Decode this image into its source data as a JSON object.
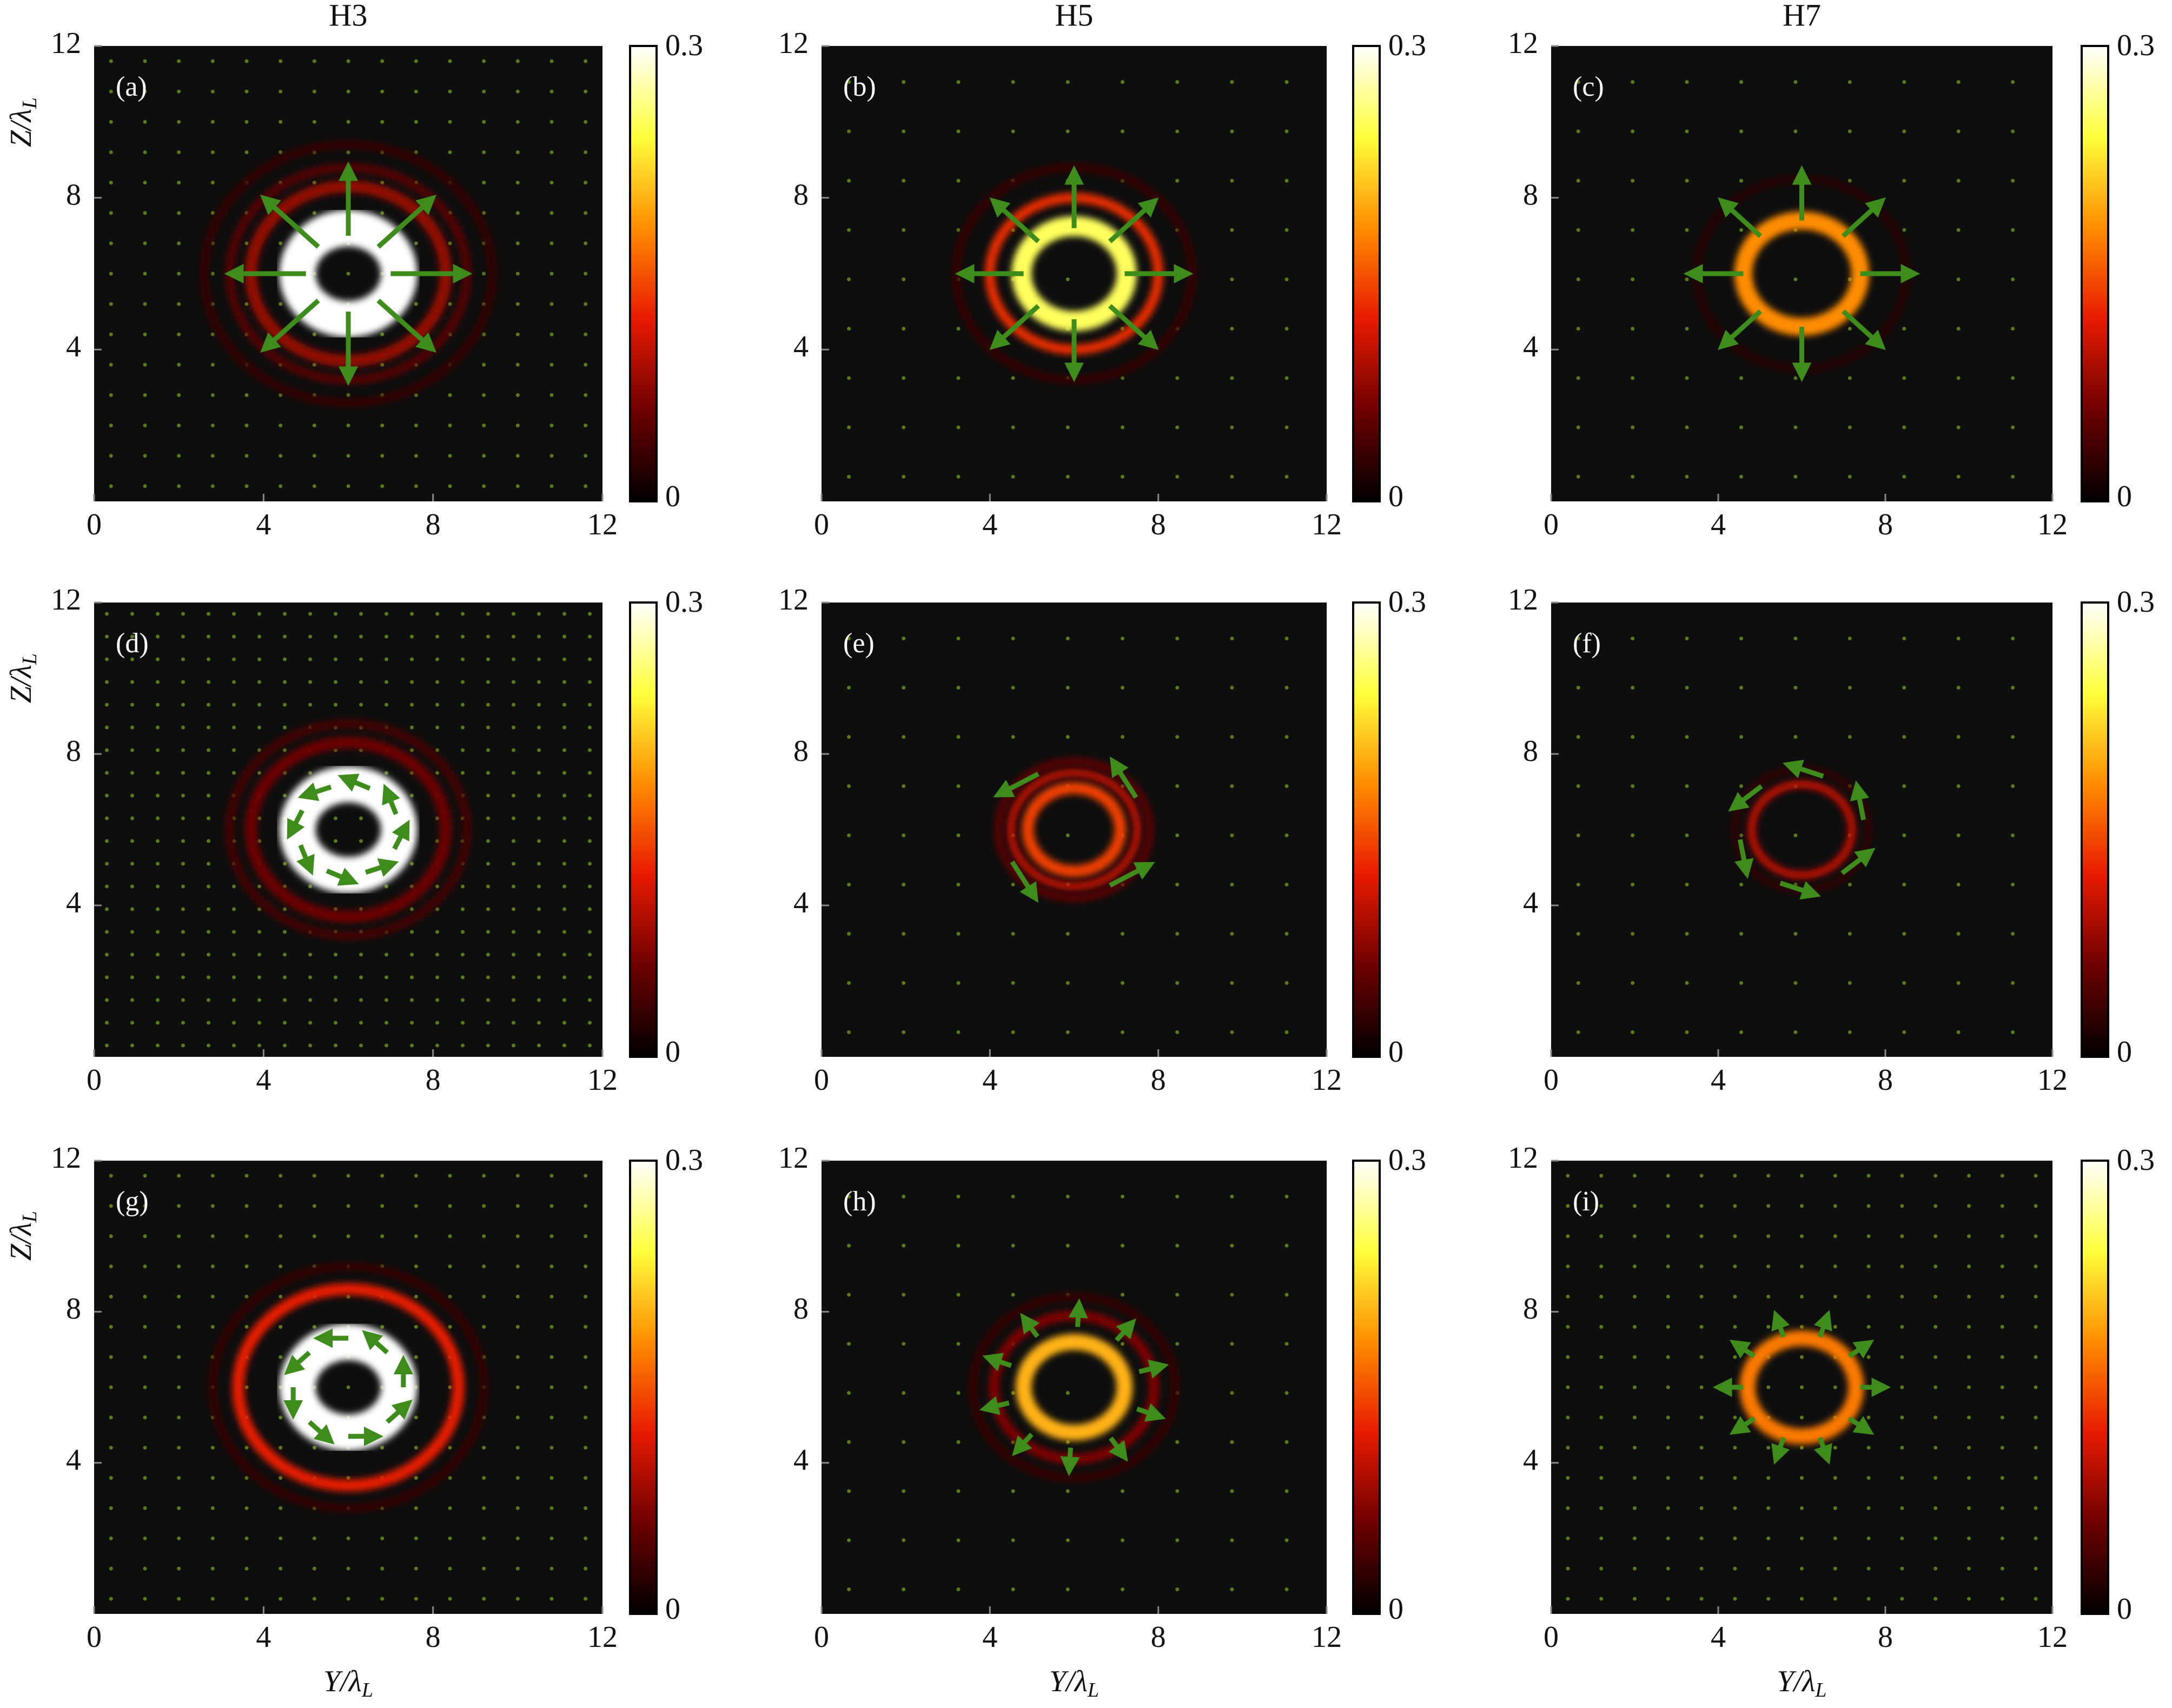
{
  "chart_data": [
    {
      "type": "heatmap",
      "column_title": "H3",
      "label": "(a)",
      "ylabel": {
        "text": "Z/λ",
        "subscript": "L"
      },
      "xlim": [
        0,
        12
      ],
      "ylim": [
        0,
        12
      ],
      "xticks": [
        0,
        4,
        8,
        12
      ],
      "yticks": [
        4,
        8,
        12
      ],
      "clim": [
        0,
        0.3
      ],
      "cticks": [
        0,
        0.3
      ],
      "colormap": [
        "#000000",
        "#6e0000",
        "#e81a00",
        "#ff8c00",
        "#ffff3c",
        "#ffffff"
      ],
      "background": "#0e0e0e",
      "center": [
        6,
        6
      ],
      "dot_spacing": 0.8,
      "dot_color": "#5a7a1a",
      "arrow_color": "#3d8c1c",
      "rings": [
        {
          "radius": 1.2,
          "width": 0.9,
          "value": 0.3
        },
        {
          "radius": 2.3,
          "width": 0.3,
          "value": 0.08
        },
        {
          "radius": 2.8,
          "width": 0.2,
          "value": 0.05
        },
        {
          "radius": 3.4,
          "width": 0.2,
          "value": 0.03
        }
      ],
      "arrows": {
        "count": 8,
        "radius": 1,
        "length": 1.7,
        "start_angle": 0,
        "direction": "radial"
      }
    },
    {
      "type": "heatmap",
      "column_title": "H5",
      "label": "(b)",
      "xlim": [
        0,
        12
      ],
      "ylim": [
        0,
        12
      ],
      "xticks": [
        0,
        4,
        8,
        12
      ],
      "yticks": [
        4,
        8,
        12
      ],
      "clim": [
        0,
        0.3
      ],
      "cticks": [
        0,
        0.3
      ],
      "colormap": [
        "#000000",
        "#6e0000",
        "#e81a00",
        "#ff8c00",
        "#ffff3c",
        "#ffffff"
      ],
      "background": "#0e0e0e",
      "center": [
        6,
        6
      ],
      "dot_spacing": 1.3,
      "dot_color": "#5a7a1a",
      "arrow_color": "#3d8c1c",
      "rings": [
        {
          "radius": 1.25,
          "width": 0.5,
          "value": 0.25
        },
        {
          "radius": 2.0,
          "width": 0.25,
          "value": 0.13
        },
        {
          "radius": 2.8,
          "width": 0.2,
          "value": 0.03
        }
      ],
      "arrows": {
        "count": 8,
        "radius": 1.2,
        "length": 1.4,
        "start_angle": 0,
        "direction": "radial"
      }
    },
    {
      "type": "heatmap",
      "column_title": "H7",
      "label": "(c)",
      "xlim": [
        0,
        12
      ],
      "ylim": [
        0,
        12
      ],
      "xticks": [
        0,
        4,
        8,
        12
      ],
      "yticks": [
        4,
        8,
        12
      ],
      "clim": [
        0,
        0.3
      ],
      "cticks": [
        0,
        0.3
      ],
      "colormap": [
        "#000000",
        "#6e0000",
        "#e81a00",
        "#ff8c00",
        "#ffff3c",
        "#ffffff"
      ],
      "background": "#0e0e0e",
      "center": [
        6,
        6
      ],
      "dot_spacing": 1.3,
      "dot_color": "#5a7a1a",
      "arrow_color": "#3d8c1c",
      "rings": [
        {
          "radius": 1.4,
          "width": 0.45,
          "value": 0.18
        },
        {
          "radius": 2.5,
          "width": 0.2,
          "value": 0.02
        }
      ],
      "arrows": {
        "count": 8,
        "radius": 1.4,
        "length": 1.2,
        "start_angle": 0,
        "direction": "radial"
      }
    },
    {
      "type": "heatmap",
      "label": "(d)",
      "ylabel": {
        "text": "Z/λ",
        "subscript": "L"
      },
      "xlim": [
        0,
        12
      ],
      "ylim": [
        0,
        12
      ],
      "xticks": [
        0,
        4,
        8,
        12
      ],
      "yticks": [
        4,
        8,
        12
      ],
      "clim": [
        0,
        0.3
      ],
      "cticks": [
        0,
        0.3
      ],
      "colormap": [
        "#000000",
        "#6e0000",
        "#e81a00",
        "#ff8c00",
        "#ffff3c",
        "#ffffff"
      ],
      "background": "#0e0e0e",
      "center": [
        6,
        6
      ],
      "dot_spacing": 0.6,
      "dot_color": "#5a7a1a",
      "arrow_color": "#3d8c1c",
      "rings": [
        {
          "radius": 1.2,
          "width": 0.9,
          "value": 0.3
        },
        {
          "radius": 2.3,
          "width": 0.3,
          "value": 0.06
        },
        {
          "radius": 2.8,
          "width": 0.2,
          "value": 0.04
        }
      ],
      "arrows": {
        "count": 8,
        "radius": 1.2,
        "length": 0.6,
        "start_angle": 20,
        "direction": "azimuthal"
      }
    },
    {
      "type": "heatmap",
      "label": "(e)",
      "xlim": [
        0,
        12
      ],
      "ylim": [
        0,
        12
      ],
      "xticks": [
        0,
        4,
        8,
        12
      ],
      "yticks": [
        4,
        8,
        12
      ],
      "clim": [
        0,
        0.3
      ],
      "cticks": [
        0,
        0.3
      ],
      "colormap": [
        "#000000",
        "#6e0000",
        "#e81a00",
        "#ff8c00",
        "#ffff3c",
        "#ffffff"
      ],
      "background": "#0e0e0e",
      "center": [
        6,
        6
      ],
      "dot_spacing": 1.3,
      "dot_color": "#5a7a1a",
      "arrow_color": "#3d8c1c",
      "rings": [
        {
          "radius": 1.1,
          "width": 0.3,
          "value": 0.14
        },
        {
          "radius": 1.5,
          "width": 0.2,
          "value": 0.1
        },
        {
          "radius": 1.8,
          "width": 0.2,
          "value": 0.05
        }
      ],
      "arrows": {
        "count": 4,
        "radius": 1.7,
        "length": 1.0,
        "start_angle": 30,
        "direction": "azimuthal"
      }
    },
    {
      "type": "heatmap",
      "label": "(f)",
      "xlim": [
        0,
        12
      ],
      "ylim": [
        0,
        12
      ],
      "xticks": [
        0,
        4,
        8,
        12
      ],
      "yticks": [
        4,
        8,
        12
      ],
      "clim": [
        0,
        0.3
      ],
      "cticks": [
        0,
        0.3
      ],
      "colormap": [
        "#000000",
        "#6e0000",
        "#e81a00",
        "#ff8c00",
        "#ffff3c",
        "#ffffff"
      ],
      "background": "#0e0e0e",
      "center": [
        6,
        6
      ],
      "dot_spacing": 1.3,
      "dot_color": "#5a7a1a",
      "arrow_color": "#3d8c1c",
      "rings": [
        {
          "radius": 1.2,
          "width": 0.2,
          "value": 0.1
        },
        {
          "radius": 1.6,
          "width": 0.15,
          "value": 0.03
        }
      ],
      "arrows": {
        "count": 6,
        "radius": 1.5,
        "length": 0.8,
        "start_angle": 10,
        "direction": "azimuthal"
      }
    },
    {
      "type": "heatmap",
      "label": "(g)",
      "ylabel": {
        "text": "Z/λ",
        "subscript": "L"
      },
      "xlabel": {
        "text": "Y/λ",
        "subscript": "L"
      },
      "xlim": [
        0,
        12
      ],
      "ylim": [
        0,
        12
      ],
      "xticks": [
        0,
        4,
        8,
        12
      ],
      "yticks": [
        4,
        8,
        12
      ],
      "clim": [
        0,
        0.3
      ],
      "cticks": [
        0,
        0.3
      ],
      "colormap": [
        "#000000",
        "#6e0000",
        "#e81a00",
        "#ff8c00",
        "#ffff3c",
        "#ffffff"
      ],
      "background": "#0e0e0e",
      "center": [
        6,
        6
      ],
      "dot_spacing": 0.8,
      "dot_color": "#5a7a1a",
      "arrow_color": "#3d8c1c",
      "rings": [
        {
          "radius": 1.2,
          "width": 0.9,
          "value": 0.3
        },
        {
          "radius": 2.6,
          "width": 0.3,
          "value": 0.12
        },
        {
          "radius": 3.2,
          "width": 0.2,
          "value": 0.03
        }
      ],
      "arrows": {
        "count": 8,
        "radius": 1.3,
        "length": 0.6,
        "start_angle": 45,
        "direction": "azimuthal"
      }
    },
    {
      "type": "heatmap",
      "label": "(h)",
      "xlabel": {
        "text": "Y/λ",
        "subscript": "L"
      },
      "xlim": [
        0,
        12
      ],
      "ylim": [
        0,
        12
      ],
      "xticks": [
        0,
        4,
        8,
        12
      ],
      "yticks": [
        4,
        8,
        12
      ],
      "clim": [
        0,
        0.3
      ],
      "cticks": [
        0,
        0.3
      ],
      "colormap": [
        "#000000",
        "#6e0000",
        "#e81a00",
        "#ff8c00",
        "#ffff3c",
        "#ffffff"
      ],
      "background": "#0e0e0e",
      "center": [
        6,
        6
      ],
      "dot_spacing": 1.3,
      "dot_color": "#5a7a1a",
      "arrow_color": "#3d8c1c",
      "rings": [
        {
          "radius": 1.2,
          "width": 0.4,
          "value": 0.2
        },
        {
          "radius": 1.9,
          "width": 0.25,
          "value": 0.07
        },
        {
          "radius": 2.4,
          "width": 0.2,
          "value": 0.03
        }
      ],
      "arrows": {
        "count": 10,
        "radius": 1.6,
        "length": 0.5,
        "start_angle": 15,
        "direction": "radial"
      }
    },
    {
      "type": "heatmap",
      "label": "(i)",
      "xlabel": {
        "text": "Y/λ",
        "subscript": "L"
      },
      "xlim": [
        0,
        12
      ],
      "ylim": [
        0,
        12
      ],
      "xticks": [
        0,
        4,
        8,
        12
      ],
      "yticks": [
        4,
        8,
        12
      ],
      "clim": [
        0,
        0.3
      ],
      "cticks": [
        0,
        0.3
      ],
      "colormap": [
        "#000000",
        "#6e0000",
        "#e81a00",
        "#ff8c00",
        "#ffff3c",
        "#ffffff"
      ],
      "background": "#0e0e0e",
      "center": [
        6,
        6
      ],
      "dot_spacing": 0.8,
      "dot_color": "#5a7a1a",
      "arrow_color": "#3d8c1c",
      "rings": [
        {
          "radius": 1.3,
          "width": 0.4,
          "value": 0.17
        }
      ],
      "arrows": {
        "count": 10,
        "radius": 1.4,
        "length": 0.5,
        "start_angle": 0,
        "direction": "radial"
      }
    }
  ]
}
